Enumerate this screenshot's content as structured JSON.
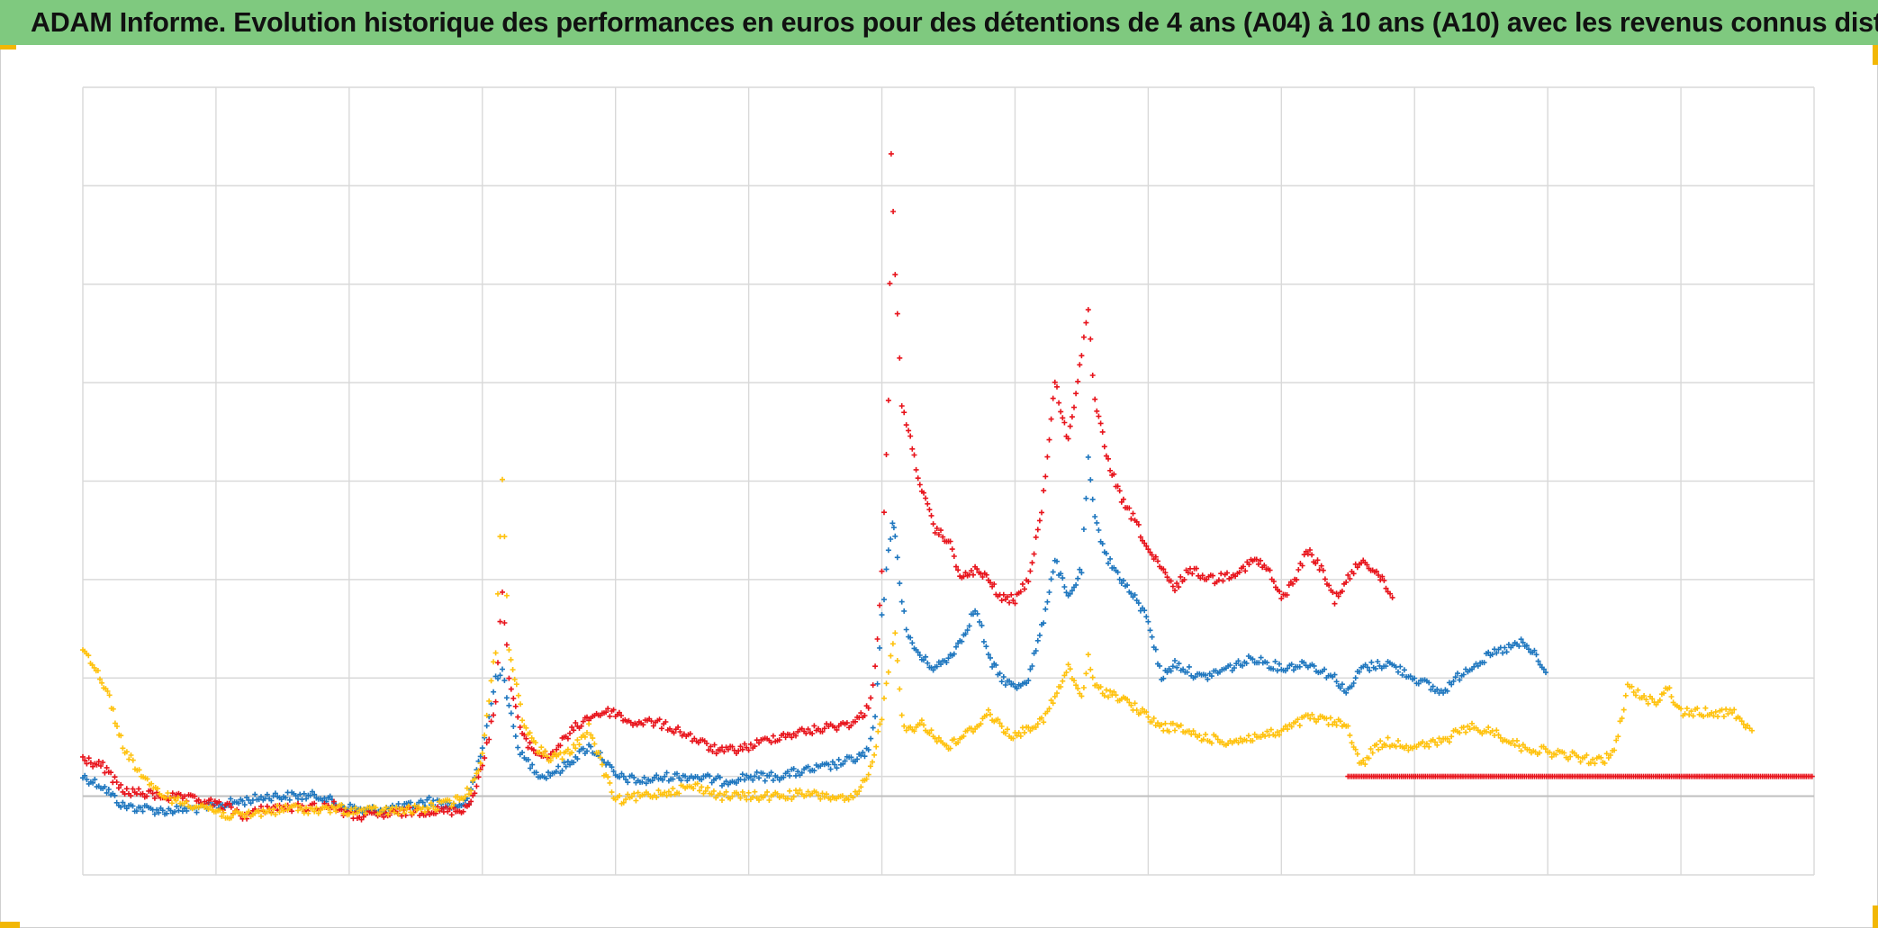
{
  "title": "ADAM Informe. Evolution historique des performances en euros pour des détentions de 4 ans (A04) à 10 ans (A10) avec les revenus connus distribués",
  "colors": {
    "title_background": "#7fc97f",
    "corner_marks": "#f2b705",
    "grid": "#d9d9d9",
    "zero_line": "#bfbfbf"
  },
  "chart_data": {
    "type": "scatter",
    "title": "ADAM Informe. Evolution historique des performances en euros pour des détentions de 4 ans (A04) à 10 ans (A10) avec les revenus connus distribués",
    "xlabel": "",
    "ylabel": "",
    "x_tick_labels": "none",
    "y_tick_labels": "none",
    "grid": true,
    "legend": "none",
    "marker": "plus",
    "xlim": [
      0,
      13
    ],
    "ylim": [
      -0.8,
      7.2
    ],
    "zero_line": 0,
    "series": [
      {
        "color": "#1f77bf",
        "points": [
          [
            0,
            0.2
          ],
          [
            0.15,
            0.1
          ],
          [
            0.3,
            -0.1
          ],
          [
            0.6,
            -0.15
          ],
          [
            0.9,
            -0.12
          ],
          [
            1.2,
            -0.05
          ],
          [
            1.4,
            0
          ],
          [
            1.6,
            0
          ],
          [
            1.8,
            0
          ],
          [
            1.9,
            -0.08
          ],
          [
            2.1,
            -0.15
          ],
          [
            2.4,
            -0.12
          ],
          [
            2.6,
            -0.05
          ],
          [
            2.8,
            -0.1
          ],
          [
            2.9,
            -0.05
          ],
          [
            3.0,
            0.5
          ],
          [
            3.05,
            0.8
          ],
          [
            3.1,
            1.2
          ],
          [
            3.15,
            1.3
          ],
          [
            3.2,
            0.9
          ],
          [
            3.25,
            0.6
          ],
          [
            3.3,
            0.4
          ],
          [
            3.45,
            0.2
          ],
          [
            3.6,
            0.28
          ],
          [
            3.7,
            0.4
          ],
          [
            3.8,
            0.5
          ],
          [
            3.9,
            0.4
          ],
          [
            4.0,
            0.2
          ],
          [
            4.2,
            0.15
          ],
          [
            4.4,
            0.2
          ],
          [
            4.6,
            0.2
          ],
          [
            4.8,
            0.15
          ],
          [
            5.0,
            0.2
          ],
          [
            5.2,
            0.2
          ],
          [
            5.4,
            0.25
          ],
          [
            5.6,
            0.3
          ],
          [
            5.8,
            0.38
          ],
          [
            5.9,
            0.45
          ],
          [
            5.95,
            0.8
          ],
          [
            6.0,
            1.8
          ],
          [
            6.05,
            2.5
          ],
          [
            6.08,
            2.8
          ],
          [
            6.1,
            2.6
          ],
          [
            6.15,
            2.0
          ],
          [
            6.2,
            1.6
          ],
          [
            6.3,
            1.4
          ],
          [
            6.4,
            1.3
          ],
          [
            6.5,
            1.4
          ],
          [
            6.6,
            1.6
          ],
          [
            6.7,
            1.9
          ],
          [
            6.75,
            1.7
          ],
          [
            6.8,
            1.4
          ],
          [
            6.9,
            1.2
          ],
          [
            7.0,
            1.1
          ],
          [
            7.1,
            1.2
          ],
          [
            7.2,
            1.7
          ],
          [
            7.3,
            2.4
          ],
          [
            7.4,
            2.0
          ],
          [
            7.5,
            2.3
          ],
          [
            7.55,
            3.4
          ],
          [
            7.6,
            2.8
          ],
          [
            7.7,
            2.4
          ],
          [
            7.8,
            2.2
          ],
          [
            7.9,
            2.0
          ],
          [
            8.0,
            1.8
          ],
          [
            8.1,
            1.2
          ],
          [
            8.2,
            1.35
          ],
          [
            8.4,
            1.2
          ],
          [
            8.6,
            1.3
          ],
          [
            8.8,
            1.4
          ],
          [
            9.0,
            1.3
          ],
          [
            9.2,
            1.35
          ],
          [
            9.4,
            1.2
          ],
          [
            9.5,
            1.05
          ],
          [
            9.6,
            1.3
          ],
          [
            9.8,
            1.35
          ],
          [
            10.0,
            1.2
          ],
          [
            10.2,
            1.05
          ],
          [
            10.4,
            1.3
          ],
          [
            10.6,
            1.45
          ],
          [
            10.8,
            1.55
          ],
          [
            10.9,
            1.45
          ],
          [
            11.0,
            1.2
          ]
        ]
      },
      {
        "color": "#e8141c",
        "points": [
          [
            0,
            0.38
          ],
          [
            0.15,
            0.3
          ],
          [
            0.3,
            0.05
          ],
          [
            0.6,
            0
          ],
          [
            0.9,
            -0.05
          ],
          [
            1.1,
            -0.12
          ],
          [
            1.2,
            -0.2
          ],
          [
            1.4,
            -0.12
          ],
          [
            1.6,
            -0.12
          ],
          [
            1.8,
            -0.1
          ],
          [
            1.9,
            -0.1
          ],
          [
            2.0,
            -0.2
          ],
          [
            2.2,
            -0.2
          ],
          [
            2.5,
            -0.15
          ],
          [
            2.8,
            -0.15
          ],
          [
            2.9,
            -0.1
          ],
          [
            3.0,
            0.3
          ],
          [
            3.05,
            0.6
          ],
          [
            3.1,
            1.0
          ],
          [
            3.15,
            2.1
          ],
          [
            3.2,
            1.2
          ],
          [
            3.25,
            0.9
          ],
          [
            3.3,
            0.6
          ],
          [
            3.4,
            0.45
          ],
          [
            3.5,
            0.4
          ],
          [
            3.6,
            0.55
          ],
          [
            3.7,
            0.7
          ],
          [
            3.8,
            0.8
          ],
          [
            3.9,
            0.85
          ],
          [
            4.0,
            0.85
          ],
          [
            4.1,
            0.75
          ],
          [
            4.3,
            0.75
          ],
          [
            4.5,
            0.65
          ],
          [
            4.7,
            0.5
          ],
          [
            4.8,
            0.45
          ],
          [
            5.0,
            0.5
          ],
          [
            5.2,
            0.6
          ],
          [
            5.4,
            0.65
          ],
          [
            5.6,
            0.7
          ],
          [
            5.8,
            0.75
          ],
          [
            5.9,
            0.9
          ],
          [
            5.95,
            1.3
          ],
          [
            6.0,
            2.3
          ],
          [
            6.05,
            4.0
          ],
          [
            6.07,
            6.5
          ],
          [
            6.1,
            5.3
          ],
          [
            6.15,
            4.0
          ],
          [
            6.2,
            3.7
          ],
          [
            6.3,
            3.1
          ],
          [
            6.4,
            2.7
          ],
          [
            6.5,
            2.6
          ],
          [
            6.6,
            2.2
          ],
          [
            6.7,
            2.3
          ],
          [
            6.8,
            2.2
          ],
          [
            6.9,
            2.0
          ],
          [
            7.0,
            2.0
          ],
          [
            7.1,
            2.2
          ],
          [
            7.2,
            2.9
          ],
          [
            7.3,
            4.2
          ],
          [
            7.4,
            3.6
          ],
          [
            7.5,
            4.5
          ],
          [
            7.55,
            4.9
          ],
          [
            7.6,
            4.0
          ],
          [
            7.7,
            3.4
          ],
          [
            7.8,
            3.0
          ],
          [
            7.9,
            2.8
          ],
          [
            8.0,
            2.5
          ],
          [
            8.1,
            2.3
          ],
          [
            8.2,
            2.1
          ],
          [
            8.3,
            2.3
          ],
          [
            8.5,
            2.2
          ],
          [
            8.7,
            2.3
          ],
          [
            8.8,
            2.4
          ],
          [
            8.9,
            2.3
          ],
          [
            9.0,
            2.0
          ],
          [
            9.1,
            2.2
          ],
          [
            9.2,
            2.5
          ],
          [
            9.3,
            2.3
          ],
          [
            9.4,
            2.0
          ],
          [
            9.5,
            2.2
          ],
          [
            9.6,
            2.4
          ],
          [
            9.7,
            2.3
          ],
          [
            9.8,
            2.1
          ],
          [
            9.85,
            2.0
          ]
        ]
      },
      {
        "color": "#ffc20e",
        "points": [
          [
            0,
            1.5
          ],
          [
            0.1,
            1.3
          ],
          [
            0.2,
            1.0
          ],
          [
            0.3,
            0.5
          ],
          [
            0.5,
            0.1
          ],
          [
            0.7,
            -0.05
          ],
          [
            0.9,
            -0.1
          ],
          [
            1.0,
            -0.15
          ],
          [
            1.1,
            -0.2
          ],
          [
            1.2,
            -0.2
          ],
          [
            1.4,
            -0.15
          ],
          [
            1.6,
            -0.12
          ],
          [
            1.8,
            -0.15
          ],
          [
            1.9,
            -0.12
          ],
          [
            2.0,
            -0.15
          ],
          [
            2.2,
            -0.15
          ],
          [
            2.4,
            -0.15
          ],
          [
            2.6,
            -0.12
          ],
          [
            2.8,
            -0.05
          ],
          [
            2.9,
            0.05
          ],
          [
            3.0,
            0.4
          ],
          [
            3.05,
            1.0
          ],
          [
            3.1,
            1.5
          ],
          [
            3.15,
            3.2
          ],
          [
            3.2,
            1.5
          ],
          [
            3.3,
            0.8
          ],
          [
            3.4,
            0.5
          ],
          [
            3.5,
            0.4
          ],
          [
            3.6,
            0.4
          ],
          [
            3.7,
            0.5
          ],
          [
            3.8,
            0.7
          ],
          [
            3.9,
            0.3
          ],
          [
            4.0,
            -0.05
          ],
          [
            4.2,
            0
          ],
          [
            4.4,
            0.05
          ],
          [
            4.6,
            0.1
          ],
          [
            4.8,
            0
          ],
          [
            5.0,
            0
          ],
          [
            5.2,
            0
          ],
          [
            5.4,
            0.02
          ],
          [
            5.6,
            0
          ],
          [
            5.75,
            -0.05
          ],
          [
            5.8,
            0
          ],
          [
            5.9,
            0.2
          ],
          [
            6.0,
            0.8
          ],
          [
            6.05,
            1.3
          ],
          [
            6.1,
            1.7
          ],
          [
            6.15,
            0.8
          ],
          [
            6.2,
            0.65
          ],
          [
            6.3,
            0.75
          ],
          [
            6.4,
            0.6
          ],
          [
            6.5,
            0.5
          ],
          [
            6.6,
            0.6
          ],
          [
            6.7,
            0.7
          ],
          [
            6.8,
            0.85
          ],
          [
            6.9,
            0.7
          ],
          [
            7.0,
            0.6
          ],
          [
            7.1,
            0.7
          ],
          [
            7.2,
            0.75
          ],
          [
            7.3,
            1.0
          ],
          [
            7.4,
            1.3
          ],
          [
            7.5,
            1.0
          ],
          [
            7.55,
            1.4
          ],
          [
            7.6,
            1.1
          ],
          [
            7.7,
            1.05
          ],
          [
            7.8,
            1.0
          ],
          [
            7.9,
            0.9
          ],
          [
            8.0,
            0.8
          ],
          [
            8.1,
            0.7
          ],
          [
            8.2,
            0.7
          ],
          [
            8.4,
            0.6
          ],
          [
            8.6,
            0.55
          ],
          [
            8.8,
            0.6
          ],
          [
            9.0,
            0.65
          ],
          [
            9.2,
            0.8
          ],
          [
            9.4,
            0.75
          ],
          [
            9.5,
            0.7
          ],
          [
            9.6,
            0.3
          ],
          [
            9.7,
            0.5
          ],
          [
            9.8,
            0.55
          ],
          [
            10.0,
            0.5
          ],
          [
            10.2,
            0.55
          ],
          [
            10.4,
            0.7
          ],
          [
            10.6,
            0.65
          ],
          [
            10.8,
            0.5
          ],
          [
            11.0,
            0.45
          ],
          [
            11.2,
            0.4
          ],
          [
            11.4,
            0.35
          ],
          [
            11.5,
            0.45
          ],
          [
            11.6,
            1.1
          ],
          [
            11.8,
            0.95
          ],
          [
            11.9,
            1.1
          ],
          [
            12.0,
            0.85
          ],
          [
            12.2,
            0.85
          ],
          [
            12.4,
            0.85
          ],
          [
            12.5,
            0.7
          ],
          [
            12.55,
            0.7
          ]
        ]
      },
      {
        "color": "#e8141c",
        "points": [
          [
            9.5,
            0.2
          ],
          [
            13.0,
            0.2
          ]
        ]
      }
    ]
  }
}
